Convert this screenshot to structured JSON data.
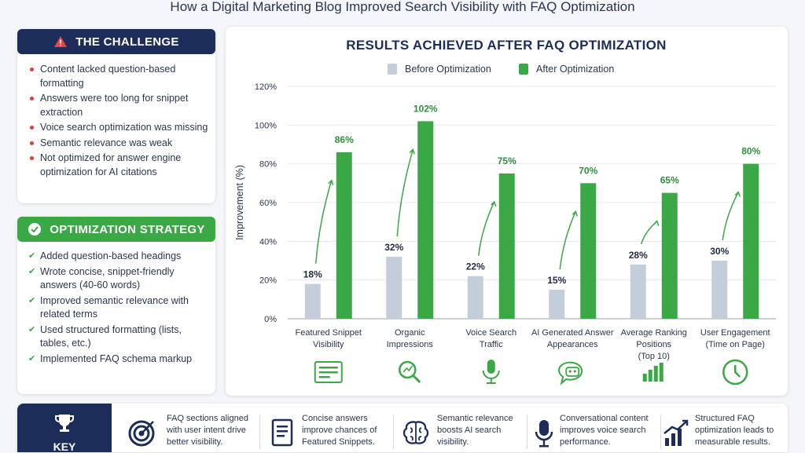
{
  "title": "How a Digital Marketing Blog Improved Search Visibility with FAQ Optimization",
  "challenge": {
    "heading": "THE CHALLENGE",
    "items": [
      "Content lacked question-based formatting",
      "Answers were too long for snippet extraction",
      "Voice search optimization was missing",
      "Semantic relevance was weak",
      "Not optimized for answer engine optimization for AI citations"
    ]
  },
  "strategy": {
    "heading": "OPTIMIZATION STRATEGY",
    "items": [
      "Added question-based headings",
      "Wrote concise, snippet-friendly answers (40-60 words)",
      "Improved semantic relevance with related terms",
      "Used structured formatting (lists, tables, etc.)",
      "Implemented FAQ schema markup"
    ]
  },
  "chart_data": {
    "type": "bar",
    "title": "RESULTS ACHIEVED AFTER FAQ OPTIMIZATION",
    "ylabel": "Improvement (%)",
    "xlabel": "",
    "ylim": [
      0,
      120
    ],
    "yticks": [
      "0%",
      "20%",
      "40%",
      "60%",
      "80%",
      "100%",
      "120%"
    ],
    "grid": true,
    "legend_position": "top-center",
    "categories": [
      [
        "Featured Snippet",
        "Visibility"
      ],
      [
        "Organic",
        "Impressions"
      ],
      [
        "Voice Search",
        "Traffic"
      ],
      [
        "AI Generated Answer",
        "Appearances"
      ],
      [
        "Average Ranking",
        "Positions",
        "(Top 10)"
      ],
      [
        "User Engagement",
        "(Time on Page)"
      ]
    ],
    "series": [
      {
        "name": "Before Optimization",
        "color": "#c4cdda",
        "values": [
          18,
          32,
          22,
          15,
          28,
          30
        ],
        "labels": [
          "18%",
          "32%",
          "22%",
          "15%",
          "28%",
          "30%"
        ]
      },
      {
        "name": "After Optimization",
        "color": "#3aa845",
        "values": [
          86,
          102,
          75,
          70,
          65,
          80
        ],
        "labels": [
          "86%",
          "102%",
          "75%",
          "70%",
          "65%",
          "80%"
        ]
      }
    ],
    "icons": [
      "snippet-card-icon",
      "magnifier-icon",
      "microphone-icon",
      "chatbot-icon",
      "ranking-bars-icon",
      "clock-icon"
    ]
  },
  "key": {
    "label": "KEY",
    "items": [
      {
        "icon": "target-icon",
        "text": "FAQ sections aligned with user intent drive better visibility."
      },
      {
        "icon": "document-icon",
        "text": "Concise answers improve chances of Featured Snippets."
      },
      {
        "icon": "brain-icon",
        "text": "Semantic relevance boosts AI search visibility."
      },
      {
        "icon": "microphone-icon",
        "text": "Conversational content improves voice search performance."
      },
      {
        "icon": "growth-chart-icon",
        "text": "Structured FAQ optimization leads to measurable results."
      }
    ]
  }
}
